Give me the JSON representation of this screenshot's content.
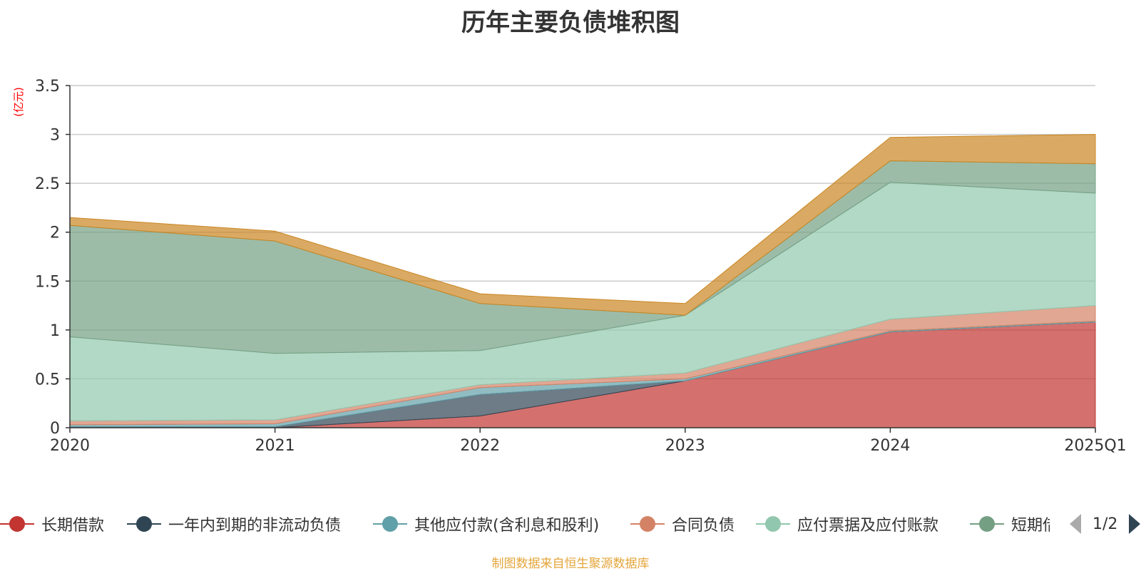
{
  "title": "历年主要负债堆积图",
  "source_note": "制图数据来自恒生聚源数据库",
  "pager": {
    "text": "1/2"
  },
  "chart_data": {
    "type": "area",
    "stacked": true,
    "title": "历年主要负债堆积图",
    "ylabel": "(亿元)",
    "ylim": [
      0,
      3.5
    ],
    "yticks": [
      0,
      0.5,
      1,
      1.5,
      2,
      2.5,
      3,
      3.5
    ],
    "ytick_labels": [
      "0",
      "0.5",
      "1",
      "1.5",
      "2",
      "2.5",
      "3",
      "3.5"
    ],
    "categories": [
      "2020",
      "2021",
      "2022",
      "2023",
      "2024",
      "2025Q1"
    ],
    "grid": true,
    "legend_position": "bottom",
    "series": [
      {
        "name": "长期借款",
        "color": "#c23531",
        "values": [
          0.0,
          0.0,
          0.12,
          0.48,
          0.98,
          1.08
        ]
      },
      {
        "name": "一年内到期的非流动负债",
        "color": "#2f4554",
        "values": [
          0.01,
          0.01,
          0.22,
          0.0,
          0.0,
          0.0
        ]
      },
      {
        "name": "其他应付款(含利息和股利)",
        "color": "#61a0a8",
        "values": [
          0.02,
          0.03,
          0.07,
          0.02,
          0.01,
          0.01
        ]
      },
      {
        "name": "合同负债",
        "color": "#d48265",
        "values": [
          0.04,
          0.04,
          0.03,
          0.06,
          0.12,
          0.16
        ]
      },
      {
        "name": "应付票据及应付账款",
        "color": "#91c7ae",
        "values": [
          0.86,
          0.68,
          0.35,
          0.59,
          1.4,
          1.15
        ]
      },
      {
        "name": "短期借款",
        "color": "#749f83",
        "values": [
          1.14,
          1.15,
          0.48,
          0.0,
          0.22,
          0.3
        ]
      },
      {
        "name": "",
        "color": "#ca8622",
        "values": [
          0.08,
          0.1,
          0.1,
          0.12,
          0.24,
          0.3
        ]
      }
    ]
  }
}
